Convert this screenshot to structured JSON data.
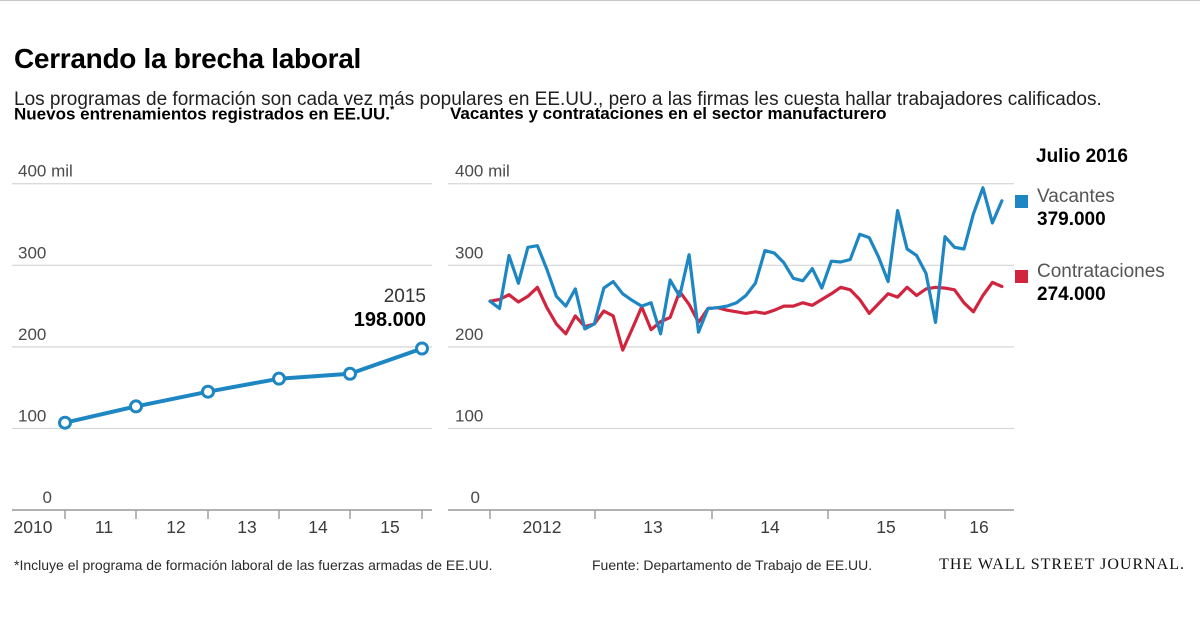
{
  "header": {
    "title": "Cerrando la brecha laboral",
    "subtitle": "Los programas de formación son cada vez más populares en EE.UU., pero a las firmas les cuesta hallar trabajadores calificados."
  },
  "colors": {
    "blue": "#1e87c3",
    "red": "#d1253f",
    "grid": "#d6d6d6",
    "axis": "#999999",
    "axis_text": "#4a4a4a"
  },
  "charts": {
    "left": {
      "title": "Nuevos entrenamientos registrados en EE.UU.",
      "footnote_mark": "*",
      "annotation_year": "2015",
      "annotation_value": "198.000"
    },
    "right": {
      "title": "Vacantes y contrataciones en el sector manufacturero",
      "timestamp": "Julio 2016",
      "legend": [
        {
          "name": "Vacantes",
          "value": "379.000",
          "color_key": "blue"
        },
        {
          "name": "Contrataciones",
          "value": "274.000",
          "color_key": "red"
        }
      ]
    }
  },
  "chart_data": [
    {
      "type": "line",
      "title": "Nuevos entrenamientos registrados en EE.UU.*",
      "unit": "miles",
      "ylim": [
        0,
        400
      ],
      "ytick_labels": [
        "400 mil",
        "300",
        "200",
        "100",
        "0"
      ],
      "ytick_values": [
        400,
        300,
        200,
        100,
        0
      ],
      "xtick_labels": [
        "2010",
        "11",
        "12",
        "13",
        "14",
        "15"
      ],
      "categories": [
        2010,
        2011,
        2012,
        2013,
        2014,
        2015
      ],
      "values": [
        107,
        127,
        145,
        161,
        167,
        198
      ],
      "annotation": {
        "year": "2015",
        "value_label": "198.000",
        "value": 198
      },
      "markers": true,
      "grid": true,
      "legend_position": "none"
    },
    {
      "type": "line",
      "title": "Vacantes y contrataciones en el sector manufacturero",
      "unit": "miles",
      "ylim": [
        0,
        400
      ],
      "ytick_labels": [
        "400 mil",
        "300",
        "200",
        "100",
        "0"
      ],
      "ytick_values": [
        400,
        300,
        200,
        100,
        0
      ],
      "xtick_labels": [
        "2012",
        "13",
        "14",
        "15",
        "16"
      ],
      "x_range": "enero 2012 - julio 2016 (mensual)",
      "timestamp_label": "Julio 2016",
      "grid": true,
      "legend_position": "right",
      "series": [
        {
          "name": "Vacantes",
          "last_value_label": "379.000",
          "color_key": "blue",
          "values": [
            256,
            247,
            312,
            278,
            322,
            324,
            295,
            262,
            250,
            271,
            222,
            228,
            272,
            280,
            265,
            257,
            250,
            254,
            216,
            282,
            262,
            313,
            218,
            247,
            248,
            250,
            254,
            263,
            278,
            318,
            315,
            303,
            284,
            281,
            296,
            272,
            305,
            304,
            307,
            338,
            334,
            310,
            280,
            367,
            320,
            312,
            290,
            230,
            335,
            322,
            320,
            363,
            395,
            352,
            379
          ]
        },
        {
          "name": "Contrataciones",
          "last_value_label": "274.000",
          "color_key": "red",
          "values": [
            256,
            258,
            264,
            255,
            262,
            273,
            248,
            228,
            216,
            238,
            225,
            228,
            244,
            238,
            196,
            222,
            249,
            221,
            231,
            236,
            268,
            252,
            230,
            247,
            248,
            245,
            243,
            241,
            243,
            241,
            245,
            250,
            250,
            254,
            251,
            258,
            265,
            273,
            270,
            258,
            241,
            253,
            265,
            261,
            273,
            263,
            271,
            273,
            272,
            270,
            254,
            243,
            263,
            279,
            274
          ]
        }
      ]
    }
  ],
  "footer": {
    "footnote": "*Incluye el programa de formación laboral de las fuerzas armadas de EE.UU.",
    "source": "Fuente: Departamento de Trabajo de EE.UU.",
    "brand": "THE WALL STREET JOURNAL."
  }
}
